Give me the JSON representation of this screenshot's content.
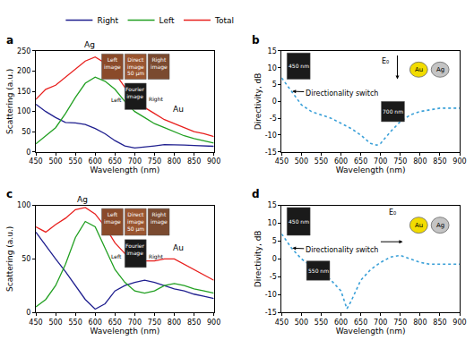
{
  "chart_data": [
    {
      "type": "line",
      "title": "a",
      "x_label": "Wavelength (nm)",
      "y_label": "Scattering (a.u.)",
      "x": [
        450,
        475,
        500,
        525,
        550,
        575,
        600,
        625,
        650,
        675,
        700,
        725,
        750,
        775,
        800,
        825,
        850,
        875,
        900
      ],
      "series": [
        {
          "name": "Right",
          "color": "#1f1f8f",
          "values": [
            118,
            100,
            85,
            73,
            72,
            68,
            58,
            45,
            28,
            15,
            10,
            12,
            15,
            18,
            18,
            17,
            16,
            15,
            14
          ]
        },
        {
          "name": "Left",
          "color": "#22a022",
          "values": [
            20,
            40,
            60,
            95,
            135,
            170,
            185,
            175,
            155,
            125,
            100,
            85,
            70,
            60,
            50,
            40,
            33,
            28,
            22
          ]
        },
        {
          "name": "Total",
          "color": "#e8201e",
          "values": [
            130,
            155,
            165,
            185,
            205,
            225,
            235,
            220,
            195,
            160,
            130,
            110,
            95,
            80,
            70,
            60,
            50,
            45,
            38
          ]
        }
      ],
      "xlim": [
        450,
        900
      ],
      "xticks": [
        450,
        500,
        550,
        600,
        650,
        700,
        750,
        800,
        850,
        900
      ],
      "ylim": [
        0,
        250
      ],
      "yticks": [
        0,
        50,
        100,
        150,
        200,
        250
      ],
      "grid": false,
      "legend": "top",
      "line_style": "solid",
      "annotations": [
        "Ag",
        "Au",
        "Left image",
        "Direct image",
        "Right image",
        "50 µm",
        "Fourier image",
        "Left",
        "Right"
      ]
    },
    {
      "type": "line",
      "title": "b",
      "x_label": "Wavelength (nm)",
      "y_label": "Directivity, dB",
      "x": [
        450,
        475,
        500,
        525,
        550,
        575,
        600,
        625,
        650,
        675,
        690,
        700,
        725,
        750,
        775,
        800,
        825,
        850,
        875,
        900
      ],
      "series": [
        {
          "color": "#3aa0d8",
          "values": [
            7,
            3,
            -1,
            -3,
            -4,
            -5,
            -6.5,
            -8,
            -10,
            -12.5,
            -13,
            -12.5,
            -9,
            -6,
            -4,
            -3,
            -2.5,
            -2,
            -2,
            -2
          ]
        }
      ],
      "xlim": [
        450,
        900
      ],
      "xticks": [
        450,
        500,
        550,
        600,
        650,
        700,
        750,
        800,
        850,
        900
      ],
      "ylim": [
        -15,
        15
      ],
      "yticks": [
        -15,
        -10,
        -5,
        0,
        5,
        10,
        15
      ],
      "grid": false,
      "line_style": "dotted",
      "annotations": [
        "E₀",
        "Au",
        "Ag",
        "Directionality switch",
        "450 nm",
        "700 nm"
      ]
    },
    {
      "type": "line",
      "title": "c",
      "x_label": "Wavelength (nm)",
      "y_label": "Scattering (a.u.)",
      "x": [
        450,
        475,
        500,
        525,
        550,
        575,
        600,
        625,
        650,
        675,
        700,
        725,
        750,
        775,
        800,
        825,
        850,
        875,
        900
      ],
      "series": [
        {
          "name": "Right",
          "color": "#1f1f8f",
          "values": [
            75,
            62,
            50,
            38,
            25,
            12,
            3,
            8,
            20,
            25,
            28,
            30,
            28,
            25,
            22,
            20,
            17,
            15,
            13
          ]
        },
        {
          "name": "Left",
          "color": "#22a022",
          "values": [
            5,
            12,
            25,
            45,
            70,
            85,
            80,
            60,
            40,
            28,
            20,
            18,
            20,
            25,
            27,
            25,
            22,
            20,
            18
          ]
        },
        {
          "name": "Total",
          "color": "#e8201e",
          "values": [
            80,
            75,
            82,
            88,
            96,
            98,
            92,
            80,
            65,
            55,
            50,
            48,
            48,
            50,
            50,
            45,
            40,
            35,
            30
          ]
        }
      ],
      "xlim": [
        450,
        900
      ],
      "xticks": [
        450,
        500,
        550,
        600,
        650,
        700,
        750,
        800,
        850,
        900
      ],
      "ylim": [
        0,
        100
      ],
      "yticks": [
        0,
        50,
        100
      ],
      "grid": false,
      "line_style": "solid",
      "annotations": [
        "Ag",
        "Au",
        "Left image",
        "Direct image",
        "Right image",
        "50 µm",
        "Fourier image",
        "Left",
        "Right"
      ]
    },
    {
      "type": "line",
      "title": "d",
      "x_label": "Wavelength (nm)",
      "y_label": "Directivity, dB",
      "x": [
        450,
        475,
        500,
        525,
        550,
        575,
        600,
        615,
        625,
        650,
        675,
        700,
        725,
        750,
        775,
        800,
        825,
        850,
        875,
        900
      ],
      "series": [
        {
          "color": "#3aa0d8",
          "values": [
            7,
            3,
            0,
            -2,
            -3.5,
            -6,
            -9,
            -14,
            -12,
            -6,
            -3,
            -1,
            0.5,
            1,
            0,
            -1,
            -1.5,
            -1.5,
            -1.5,
            -1.5
          ]
        }
      ],
      "xlim": [
        450,
        900
      ],
      "xticks": [
        450,
        500,
        550,
        600,
        650,
        700,
        750,
        800,
        850,
        900
      ],
      "ylim": [
        -15,
        15
      ],
      "yticks": [
        -15,
        -10,
        -5,
        0,
        5,
        10,
        15
      ],
      "grid": false,
      "line_style": "dotted",
      "annotations": [
        "E₀",
        "Au",
        "Ag",
        "Directionality switch",
        "450 nm",
        "550 nm"
      ]
    }
  ]
}
